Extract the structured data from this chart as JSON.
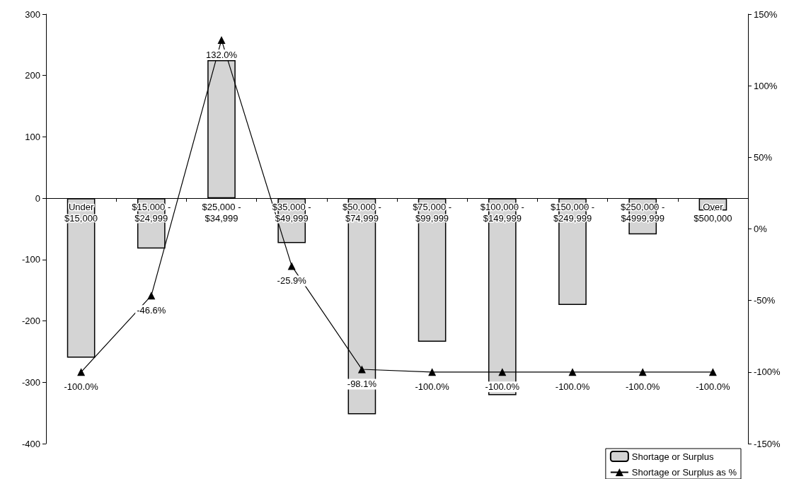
{
  "chart_data": {
    "type": "bar",
    "categories": [
      "Under $15,000",
      "$15,000 - $24,999",
      "$25,000 - $34,999",
      "$35,000 - $49,999",
      "$50,000 - $74,999",
      "$75,000 - $99,999",
      "$100,000 - $149,999",
      "$150,000 - $249,999",
      "$250,000 - $4999,999",
      "Over $500,000"
    ],
    "series": [
      {
        "name": "Shortage or Surplus",
        "color": "#d4d4d4",
        "values": [
          -260,
          -82,
          225,
          -73,
          -352,
          -234,
          -321,
          -174,
          -59,
          -20
        ]
      },
      {
        "name": "Shortage or Surplus as %",
        "type": "line",
        "axis": "y2",
        "color": "#000000",
        "marker": "triangle",
        "values": [
          -100.0,
          -46.6,
          132.0,
          -25.9,
          -98.1,
          -100.0,
          -100.0,
          -100.0,
          -100.0,
          -100.0
        ],
        "value_labels": [
          "-100.0%",
          "-46.6%",
          "132.0%",
          "-25.9%",
          "-98.1%",
          "-100.0%",
          "-100.0%",
          "-100.0%",
          "-100.0%",
          "-100.0%"
        ]
      }
    ],
    "ylim": [
      -400,
      300
    ],
    "yticks": [
      -400,
      -300,
      -200,
      -100,
      0,
      100,
      200,
      300
    ],
    "y2lim": [
      -150,
      150
    ],
    "y2ticks": [
      {
        "value": -150,
        "label": "-150%"
      },
      {
        "value": -100,
        "label": "-100%"
      },
      {
        "value": -50,
        "label": "-50%"
      },
      {
        "value": 0,
        "label": "0%"
      },
      {
        "value": 50,
        "label": "50%"
      },
      {
        "value": 100,
        "label": "100%"
      },
      {
        "value": 150,
        "label": "150%"
      }
    ],
    "grid": false,
    "legend": "bottom right"
  }
}
